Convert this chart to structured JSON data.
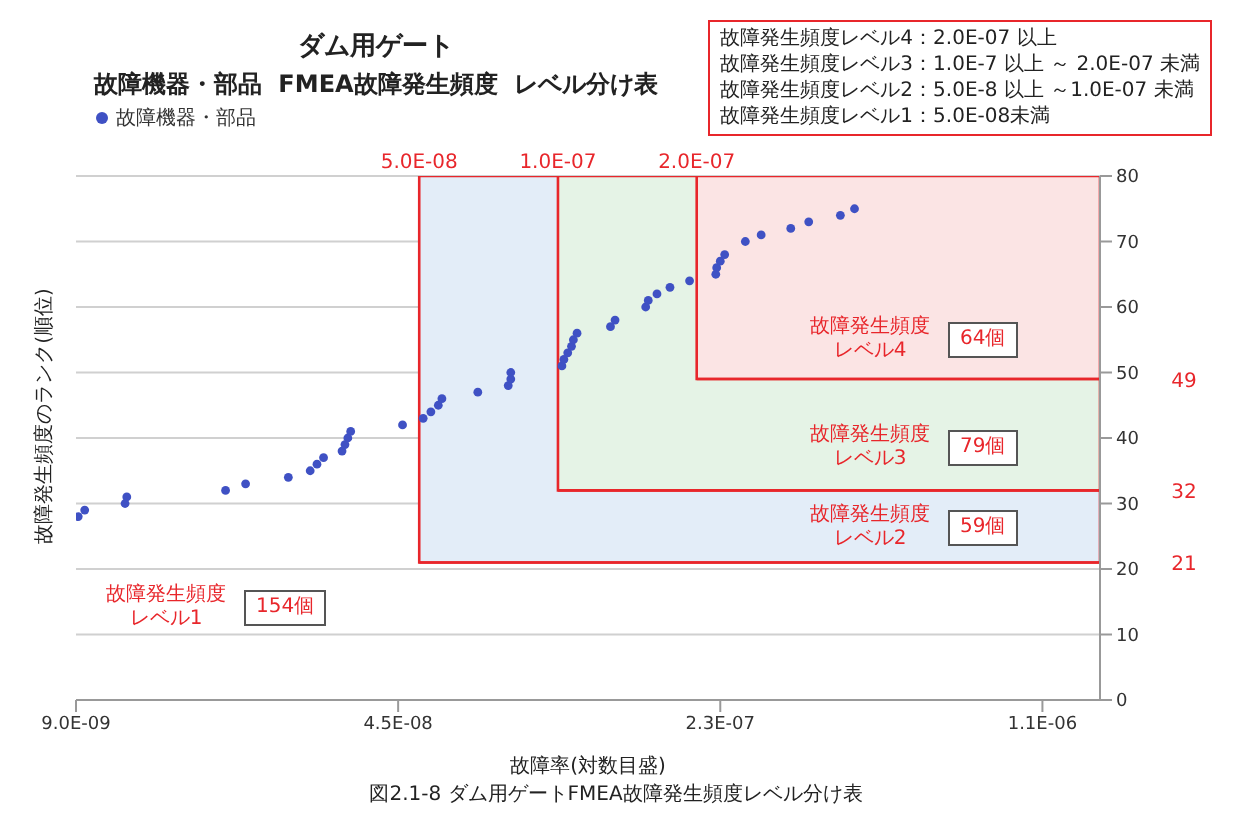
{
  "chart_data": {
    "type": "scatter",
    "title": "ダム用ゲート",
    "subtitle": "故障機器・部品  FMEA故障発生頻度  レベル分け表",
    "xlabel": "故障率(対数目盛)",
    "ylabel": "故障発生頻度のランク(順位)",
    "log": "x",
    "grid": "y",
    "legend": "top left",
    "marker": "circle",
    "xlim": [
      9e-09,
      1.5e-06
    ],
    "xticks": [
      {
        "value": 9e-09,
        "label": "9.0E-09"
      },
      {
        "value": 4.5e-08,
        "label": "4.5E-08"
      },
      {
        "value": 2.25e-07,
        "label": "2.3E-07"
      },
      {
        "value": 1.125e-06,
        "label": "1.1E-06"
      }
    ],
    "ylim": [
      0,
      80
    ],
    "yticks": [
      0,
      10,
      20,
      30,
      40,
      50,
      60,
      70,
      80
    ],
    "series": [
      {
        "name": "故障機器・部品",
        "color": "#3f51c4",
        "x": [
          9.1e-09,
          9.4e-09,
          1.15e-08,
          1.16e-08,
          1.9e-08,
          2.1e-08,
          2.6e-08,
          2.9e-08,
          3e-08,
          3.1e-08,
          3.4e-08,
          3.45e-08,
          3.5e-08,
          3.55e-08,
          4.6e-08,
          5.1e-08,
          5.3e-08,
          5.5e-08,
          5.6e-08,
          6.7e-08,
          7.8e-08,
          7.9e-08,
          7.9e-08,
          1.02e-07,
          1.03e-07,
          1.05e-07,
          1.07e-07,
          1.08e-07,
          1.1e-07,
          1.3e-07,
          1.33e-07,
          1.55e-07,
          1.57e-07,
          1.64e-07,
          1.75e-07,
          1.93e-07,
          2.2e-07,
          2.21e-07,
          2.25e-07,
          2.3e-07,
          2.55e-07,
          2.76e-07,
          3.2e-07,
          3.5e-07,
          4.1e-07,
          4.4e-07
        ],
        "values": [
          28,
          29,
          30,
          31,
          32,
          33,
          34,
          35,
          36,
          37,
          38,
          39,
          40,
          41,
          42,
          43,
          44,
          45,
          46,
          47,
          48,
          49,
          50,
          51,
          52,
          53,
          54,
          55,
          56,
          57,
          58,
          60,
          61,
          62,
          63,
          64,
          65,
          66,
          67,
          68,
          70,
          71,
          72,
          73,
          74,
          75
        ]
      }
    ],
    "bands": [
      {
        "axis": "x",
        "from": 5e-08,
        "to": 1.5e-06,
        "label": "5.0E-08",
        "color": "#e3edf8"
      },
      {
        "axis": "x",
        "from": 1e-07,
        "to": 1.5e-06,
        "label": "1.0E-07",
        "color": "#e5f3e6"
      },
      {
        "axis": "x",
        "from": 2e-07,
        "to": 1.5e-06,
        "label": "2.0E-07",
        "color": "#fbe4e4"
      }
    ],
    "ref_lines": [
      {
        "axis": "y",
        "value": 21,
        "label": "21",
        "color": "#e8262b"
      },
      {
        "axis": "y",
        "value": 32,
        "label": "32",
        "color": "#e8262b"
      },
      {
        "axis": "y",
        "value": 49,
        "label": "49",
        "color": "#e8262b"
      }
    ],
    "annotations": [
      "故障発生頻度レベル4：2.0E-07 以上",
      "故障発生頻度レベル3：1.0E-7 以上 ～ 2.0E-07 未満",
      "故障発生頻度レベル2：5.0E-8 以上 ～1.0E-07 未満",
      "故障発生頻度レベル1：5.0E-08未満",
      "図2.1-8 ダム用ゲートFMEA故障発生頻度レベル分け表",
      "故障発生頻度レベル1",
      "154個",
      "故障発生頻度レベル2",
      "59個",
      "故障発生頻度レベル3",
      "79個",
      "故障発生頻度レベル4",
      "64個"
    ]
  }
}
